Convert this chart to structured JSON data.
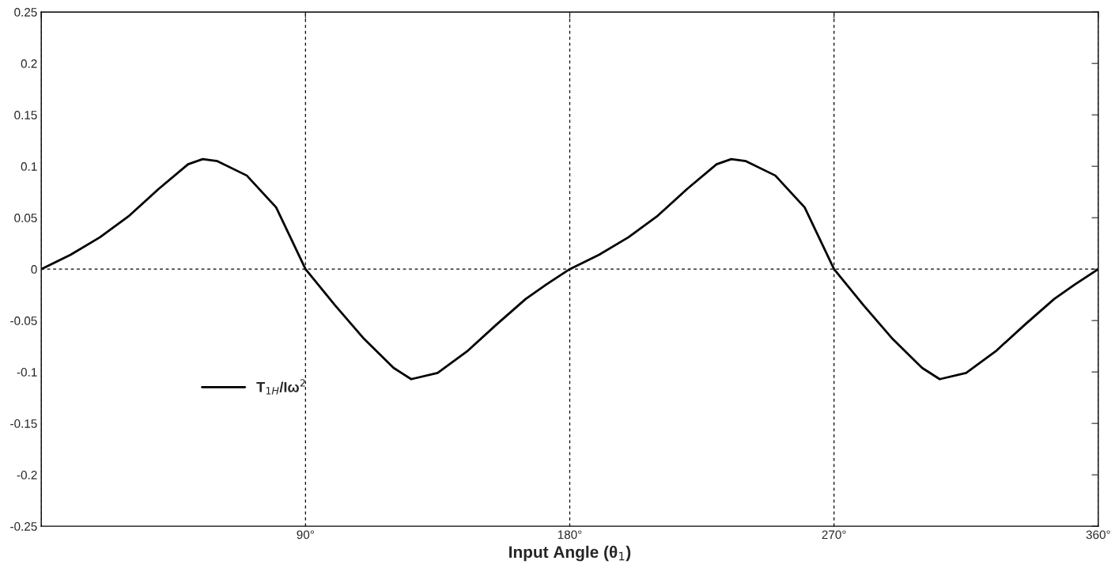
{
  "chart_data": {
    "type": "line",
    "xlabel": "Input Angle (θ$_{1}$)",
    "x": [
      0,
      10,
      20,
      30,
      40,
      50,
      55,
      60,
      70,
      80,
      90,
      100,
      110,
      120,
      126,
      135,
      145,
      155,
      165,
      172,
      180,
      190,
      200,
      210,
      220,
      230,
      235,
      240,
      250,
      260,
      270,
      280,
      290,
      300,
      306,
      315,
      325,
      335,
      345,
      352,
      360
    ],
    "series": [
      {
        "name": "T$_{1H}$/Iω$^{2}$",
        "color": "#000000",
        "values": [
          0,
          0.014,
          0.031,
          0.052,
          0.078,
          0.102,
          0.107,
          0.105,
          0.091,
          0.06,
          0,
          -0.035,
          -0.068,
          -0.096,
          -0.107,
          -0.101,
          -0.08,
          -0.054,
          -0.029,
          -0.015,
          0,
          0.014,
          0.031,
          0.052,
          0.078,
          0.102,
          0.107,
          0.105,
          0.091,
          0.06,
          0,
          -0.035,
          -0.068,
          -0.096,
          -0.107,
          -0.101,
          -0.08,
          -0.054,
          -0.029,
          -0.015,
          0
        ]
      }
    ],
    "xlim": [
      0,
      360
    ],
    "xticks": [
      {
        "value": 0,
        "label": null
      },
      {
        "value": 90,
        "label": "90°"
      },
      {
        "value": 180,
        "label": "180°"
      },
      {
        "value": 270,
        "label": "270°"
      },
      {
        "value": 360,
        "label": "360°"
      }
    ],
    "ylim": [
      -0.25,
      0.25
    ],
    "yticks": [
      {
        "value": -0.25,
        "label": "-0.25"
      },
      {
        "value": -0.2,
        "label": "-0.2"
      },
      {
        "value": -0.15,
        "label": "-0.15"
      },
      {
        "value": -0.1,
        "label": "-0.1"
      },
      {
        "value": -0.05,
        "label": "-0.05"
      },
      0,
      {
        "value": 0.05,
        "label": "0.05"
      },
      {
        "value": 0.1,
        "label": "0.1"
      },
      {
        "value": 0.15,
        "label": "0.15"
      },
      {
        "value": 0.2,
        "label": "0.2"
      },
      {
        "value": 0.25,
        "label": "0.25"
      }
    ],
    "grid": "x",
    "ref_lines": [
      {
        "axis": "y",
        "value": 0,
        "color": "#000000",
        "line_style": "dashed"
      }
    ],
    "legend": "left",
    "line_style": "solid",
    "marker": "none"
  }
}
